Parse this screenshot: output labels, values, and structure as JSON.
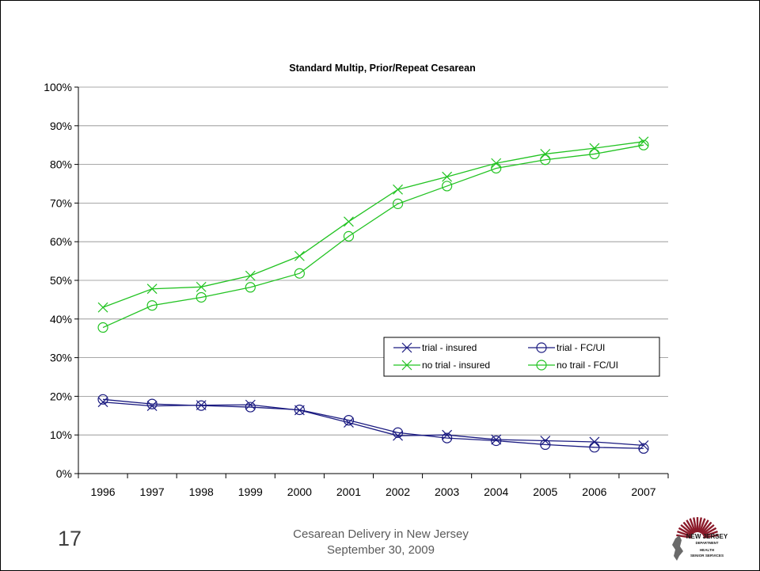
{
  "chart_data": {
    "type": "line",
    "title": "Standard Multip, Prior/Repeat Cesarean",
    "xlabel": "",
    "ylabel": "",
    "categories": [
      "1996",
      "1997",
      "1998",
      "1999",
      "2000",
      "2001",
      "2002",
      "2003",
      "2004",
      "2005",
      "2006",
      "2007"
    ],
    "ylim": [
      0,
      100
    ],
    "yticks": [
      "0%",
      "10%",
      "20%",
      "30%",
      "40%",
      "50%",
      "60%",
      "70%",
      "80%",
      "90%",
      "100%"
    ],
    "grid": true,
    "legend_position": "center-right",
    "series": [
      {
        "name": "trial - insured",
        "color": "#1a1a80",
        "marker": "x",
        "values": [
          18.5,
          17.5,
          17.7,
          17.8,
          16.4,
          13.2,
          9.8,
          10.0,
          8.8,
          8.5,
          8.2,
          7.3
        ]
      },
      {
        "name": "trial - FC/UI",
        "color": "#1a1a80",
        "marker": "o",
        "values": [
          19.2,
          18.0,
          17.6,
          17.2,
          16.5,
          13.8,
          10.6,
          9.2,
          8.5,
          7.5,
          6.8,
          6.5
        ]
      },
      {
        "name": "no trial - insured",
        "color": "#22c322",
        "marker": "x",
        "values": [
          43.0,
          47.8,
          48.3,
          51.2,
          56.3,
          65.2,
          73.5,
          76.8,
          80.3,
          82.7,
          84.2,
          85.9
        ]
      },
      {
        "name": "no trail - FC/UI",
        "color": "#22c322",
        "marker": "o",
        "values": [
          37.8,
          43.5,
          45.6,
          48.2,
          51.8,
          61.4,
          69.8,
          74.4,
          79.0,
          81.2,
          82.7,
          85.0
        ]
      }
    ]
  },
  "slide": {
    "page_number": "17",
    "footer_line1": "Cesarean Delivery in New Jersey",
    "footer_line2": "September 30, 2009"
  },
  "logo": {
    "line1": "NEW JERSEY",
    "line2": "DEPARTMENT",
    "line3": "HEALTH",
    "line4": "SENIOR SERVICES",
    "colors": {
      "burst": "#8b1a2a",
      "text": "#1a1a1a"
    }
  }
}
